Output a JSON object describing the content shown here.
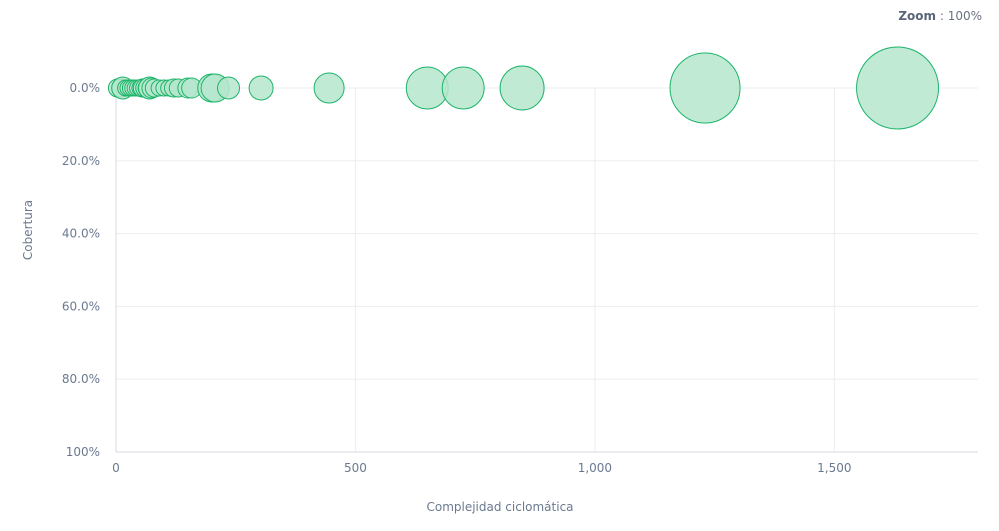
{
  "zoom": {
    "label": "Zoom",
    "separator": " : ",
    "value": "100%"
  },
  "chart_data": {
    "type": "scatter",
    "xlabel": "Complejidad ciclomática",
    "ylabel": "Cobertura",
    "xlim": [
      0,
      1800
    ],
    "ylim": [
      0,
      100
    ],
    "y_inverted": true,
    "x_ticks": [
      0,
      500,
      1000,
      1500
    ],
    "x_tick_labels": [
      "0",
      "500",
      "1,000",
      "1,500"
    ],
    "y_ticks": [
      0,
      20,
      40,
      60,
      80,
      100
    ],
    "y_tick_labels": [
      "0.0%",
      "20.0%",
      "40.0%",
      "60.0%",
      "80.0%",
      "100%"
    ],
    "grid": true,
    "bubble_size_encoded": true,
    "color": "#1db46a",
    "fill_color": "#b5e6cc",
    "points": [
      {
        "x": 3,
        "y": 0,
        "size": 9
      },
      {
        "x": 10,
        "y": 0,
        "size": 9
      },
      {
        "x": 14,
        "y": 0,
        "size": 11
      },
      {
        "x": 20,
        "y": 0,
        "size": 8
      },
      {
        "x": 25,
        "y": 0,
        "size": 8
      },
      {
        "x": 30,
        "y": 0,
        "size": 8
      },
      {
        "x": 35,
        "y": 0,
        "size": 8
      },
      {
        "x": 40,
        "y": 0,
        "size": 8
      },
      {
        "x": 45,
        "y": 0,
        "size": 8
      },
      {
        "x": 50,
        "y": 0,
        "size": 8
      },
      {
        "x": 55,
        "y": 0,
        "size": 9
      },
      {
        "x": 60,
        "y": 0,
        "size": 9
      },
      {
        "x": 65,
        "y": 0,
        "size": 9
      },
      {
        "x": 70,
        "y": 0,
        "size": 11
      },
      {
        "x": 75,
        "y": 0,
        "size": 10
      },
      {
        "x": 80,
        "y": 0,
        "size": 9
      },
      {
        "x": 90,
        "y": 0,
        "size": 8
      },
      {
        "x": 100,
        "y": 0,
        "size": 8
      },
      {
        "x": 110,
        "y": 0,
        "size": 8
      },
      {
        "x": 120,
        "y": 0,
        "size": 9
      },
      {
        "x": 130,
        "y": 0,
        "size": 9
      },
      {
        "x": 150,
        "y": 0,
        "size": 10
      },
      {
        "x": 158,
        "y": 0,
        "size": 10
      },
      {
        "x": 200,
        "y": 0,
        "size": 14
      },
      {
        "x": 207,
        "y": 0,
        "size": 14
      },
      {
        "x": 235,
        "y": 0,
        "size": 11
      },
      {
        "x": 303,
        "y": 0,
        "size": 12
      },
      {
        "x": 445,
        "y": 0,
        "size": 15
      },
      {
        "x": 650,
        "y": 0,
        "size": 21
      },
      {
        "x": 725,
        "y": 0,
        "size": 21
      },
      {
        "x": 848,
        "y": 0,
        "size": 22
      },
      {
        "x": 1230,
        "y": 0,
        "size": 35
      },
      {
        "x": 1632,
        "y": 0,
        "size": 41
      }
    ]
  }
}
